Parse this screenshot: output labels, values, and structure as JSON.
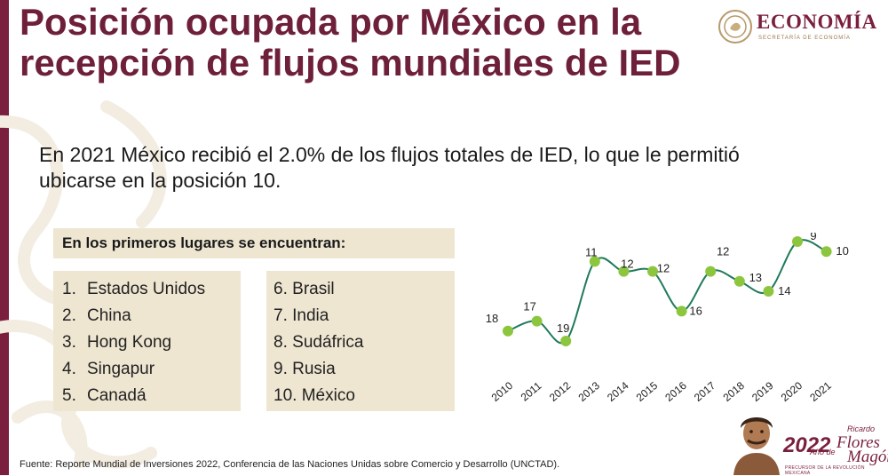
{
  "header": {
    "title": "Posición ocupada por México en la recepción de flujos mundiales de IED",
    "logo_name": "ECONOMÍA",
    "logo_sub": "SECRETARÍA DE ECONOMÍA"
  },
  "subtitle": "En 2021 México recibió el 2.0% de los flujos totales de IED, lo que le permitió ubicarse en la posición 10.",
  "ranking": {
    "heading": "En los primeros lugares se encuentran:",
    "left": [
      {
        "num": "1.",
        "country": "Estados Unidos"
      },
      {
        "num": "2.",
        "country": "China"
      },
      {
        "num": "3.",
        "country": "Hong Kong"
      },
      {
        "num": "4.",
        "country": "Singapur"
      },
      {
        "num": "5.",
        "country": "Canadá"
      }
    ],
    "right": [
      {
        "num": "6.",
        "country": "Brasil"
      },
      {
        "num": "7.",
        "country": "India"
      },
      {
        "num": "8.",
        "country": "Sudáfrica"
      },
      {
        "num": "9.",
        "country": "Rusia"
      },
      {
        "num": "10.",
        "country": "México"
      }
    ]
  },
  "chart_data": {
    "type": "line",
    "title": "",
    "xlabel": "",
    "ylabel": "",
    "x": [
      "2010",
      "2011",
      "2012",
      "2013",
      "2014",
      "2015",
      "2016",
      "2017",
      "2018",
      "2019",
      "2020",
      "2021"
    ],
    "series": [
      {
        "values": [
          18,
          17,
          19,
          11,
          12,
          12,
          16,
          12,
          13,
          14,
          9,
          10
        ]
      }
    ],
    "y_inverted": true,
    "ylim": [
      9,
      19
    ],
    "grid": false,
    "legend": "none",
    "line_color": "#1f7a5a",
    "marker_color": "#8cc63f"
  },
  "footer": {
    "source": "Fuente: Reporte Mundial de Inversiones 2022, Conferencia de las Naciones Unidas sobre Comercio y Desarrollo (UNCTAD).",
    "year": "2022",
    "small_a": "Año de",
    "small_b": "Ricardo",
    "name_a": "Flores",
    "name_b": "Magón",
    "caption": "PRECURSOR DE LA REVOLUCIÓN MEXICANA"
  }
}
